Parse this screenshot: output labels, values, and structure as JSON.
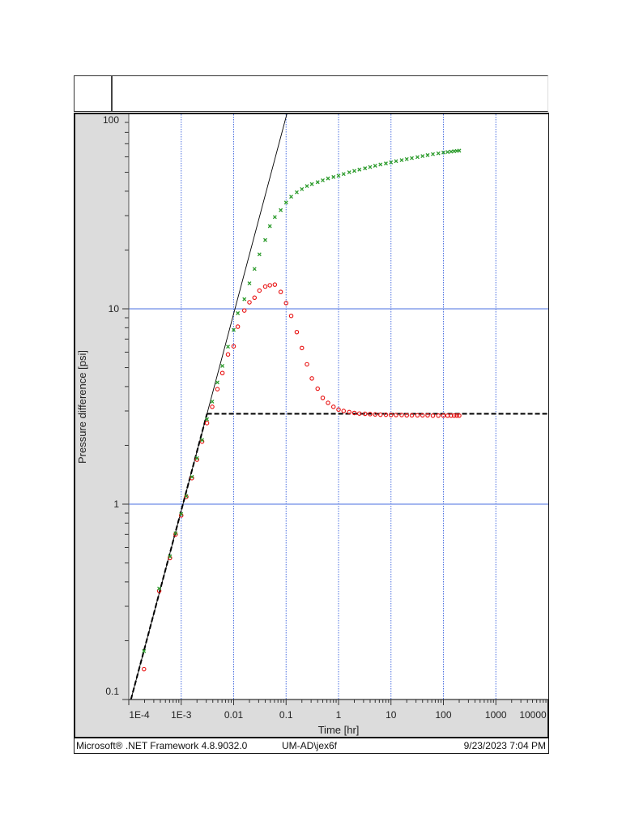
{
  "header": {
    "left_cell": "",
    "title": ""
  },
  "footer": {
    "framework": "Microsoft® .NET Framework 4.8.9032.0",
    "user": "UM-AD\\jex6f",
    "timestamp": "9/23/2023 7:04 PM"
  },
  "colors": {
    "pressure_points": "#e81010",
    "derivative_points": "#2a9a2a",
    "major_grid_h": "#4a6fe0",
    "major_grid_v": "#4a6fe0",
    "fit_line": "#000000",
    "panel_bg": "#dcdcdc"
  },
  "chart_data": {
    "type": "scatter",
    "title": "",
    "xlabel": "Time [hr]",
    "ylabel": "Pressure difference [psi]",
    "xscale": "log",
    "yscale": "log",
    "xlim": [
      0.0001,
      10000
    ],
    "ylim": [
      0.1,
      100
    ],
    "x_ticks": [
      "1E-4",
      "1E-3",
      "0.01",
      "0.1",
      "1",
      "10",
      "100",
      "1000",
      "10000"
    ],
    "y_ticks": [
      "0.1",
      "1",
      "10",
      "100"
    ],
    "grid": true,
    "series": [
      {
        "name": "Pressure difference",
        "marker": "circle",
        "color": "#e81010",
        "points": [
          [
            0.000195,
            0.143
          ],
          [
            0.00038,
            0.36
          ],
          [
            0.00061,
            0.53
          ],
          [
            0.00078,
            0.7
          ],
          [
            0.001,
            0.875
          ],
          [
            0.00125,
            1.09
          ],
          [
            0.0016,
            1.36
          ],
          [
            0.002,
            1.69
          ],
          [
            0.0025,
            2.09
          ],
          [
            0.0031,
            2.6
          ],
          [
            0.0039,
            3.15
          ],
          [
            0.0049,
            3.88
          ],
          [
            0.0061,
            4.69
          ],
          [
            0.0078,
            5.84
          ],
          [
            0.01,
            6.43
          ],
          [
            0.012,
            8.1
          ],
          [
            0.016,
            9.8
          ],
          [
            0.02,
            10.8
          ],
          [
            0.025,
            11.4
          ],
          [
            0.031,
            12.4
          ],
          [
            0.04,
            13.0
          ],
          [
            0.049,
            13.2
          ],
          [
            0.061,
            13.3
          ],
          [
            0.079,
            12.2
          ],
          [
            0.1,
            10.7
          ],
          [
            0.125,
            9.2
          ],
          [
            0.16,
            7.6
          ],
          [
            0.2,
            6.3
          ],
          [
            0.25,
            5.2
          ],
          [
            0.31,
            4.4
          ],
          [
            0.4,
            3.9
          ],
          [
            0.5,
            3.5
          ],
          [
            0.63,
            3.3
          ],
          [
            0.8,
            3.15
          ],
          [
            1.0,
            3.05
          ],
          [
            1.25,
            3.0
          ],
          [
            1.6,
            2.96
          ],
          [
            2.0,
            2.93
          ],
          [
            2.5,
            2.91
          ],
          [
            3.2,
            2.9
          ],
          [
            4.0,
            2.89
          ],
          [
            5.0,
            2.88
          ],
          [
            6.3,
            2.87
          ],
          [
            8.0,
            2.87
          ],
          [
            10,
            2.86
          ],
          [
            12.5,
            2.86
          ],
          [
            16,
            2.86
          ],
          [
            20,
            2.85
          ],
          [
            25,
            2.85
          ],
          [
            32,
            2.85
          ],
          [
            40,
            2.85
          ],
          [
            50,
            2.85
          ],
          [
            63,
            2.84
          ],
          [
            80,
            2.84
          ],
          [
            100,
            2.84
          ],
          [
            120,
            2.84
          ],
          [
            140,
            2.84
          ],
          [
            160,
            2.84
          ],
          [
            180,
            2.84
          ],
          [
            200,
            2.84
          ]
        ]
      },
      {
        "name": "Pressure derivative",
        "marker": "x",
        "color": "#2a9a2a",
        "points": [
          [
            0.000195,
            0.177
          ],
          [
            0.00038,
            0.37
          ],
          [
            0.00061,
            0.54
          ],
          [
            0.00078,
            0.71
          ],
          [
            0.001,
            0.89
          ],
          [
            0.00125,
            1.1
          ],
          [
            0.0016,
            1.38
          ],
          [
            0.002,
            1.72
          ],
          [
            0.0025,
            2.13
          ],
          [
            0.0031,
            2.72
          ],
          [
            0.0039,
            3.35
          ],
          [
            0.0049,
            4.2
          ],
          [
            0.0061,
            5.1
          ],
          [
            0.0078,
            6.4
          ],
          [
            0.01,
            7.8
          ],
          [
            0.012,
            9.5
          ],
          [
            0.016,
            11.2
          ],
          [
            0.02,
            13.5
          ],
          [
            0.025,
            16.0
          ],
          [
            0.031,
            19.0
          ],
          [
            0.04,
            22.5
          ],
          [
            0.049,
            26.5
          ],
          [
            0.061,
            29.5
          ],
          [
            0.079,
            32.0
          ],
          [
            0.1,
            35.0
          ],
          [
            0.125,
            37.5
          ],
          [
            0.16,
            39.5
          ],
          [
            0.2,
            41.0
          ],
          [
            0.25,
            42.5
          ],
          [
            0.31,
            43.5
          ],
          [
            0.4,
            44.5
          ],
          [
            0.5,
            45.5
          ],
          [
            0.63,
            46.5
          ],
          [
            0.8,
            47.3
          ],
          [
            1.0,
            48.0
          ],
          [
            1.25,
            49.0
          ],
          [
            1.6,
            50.0
          ],
          [
            2.0,
            50.8
          ],
          [
            2.5,
            51.6
          ],
          [
            3.2,
            52.4
          ],
          [
            4.0,
            53.2
          ],
          [
            5.0,
            54.0
          ],
          [
            6.3,
            54.8
          ],
          [
            8.0,
            55.5
          ],
          [
            10,
            56.2
          ],
          [
            12.5,
            57.0
          ],
          [
            16,
            57.7
          ],
          [
            20,
            58.4
          ],
          [
            25,
            59.1
          ],
          [
            32,
            59.8
          ],
          [
            40,
            60.5
          ],
          [
            50,
            61.2
          ],
          [
            63,
            61.9
          ],
          [
            80,
            62.5
          ],
          [
            100,
            63.1
          ],
          [
            120,
            63.5
          ],
          [
            140,
            63.8
          ],
          [
            160,
            64.1
          ],
          [
            180,
            64.3
          ],
          [
            200,
            64.5
          ]
        ]
      }
    ],
    "lines": [
      {
        "name": "unit-slope line (solid)",
        "style": "solid",
        "from": [
          0.00011,
          0.1
        ],
        "to": [
          0.104,
          100
        ]
      },
      {
        "name": "unit-slope segment (dashed)",
        "style": "dashed",
        "from": [
          0.00011,
          0.1
        ],
        "to": [
          0.0031,
          2.9
        ]
      },
      {
        "name": "radial flow stabilization (dashed)",
        "style": "dashed",
        "from": [
          0.0031,
          2.9
        ],
        "to": [
          10000,
          2.9
        ]
      }
    ]
  }
}
